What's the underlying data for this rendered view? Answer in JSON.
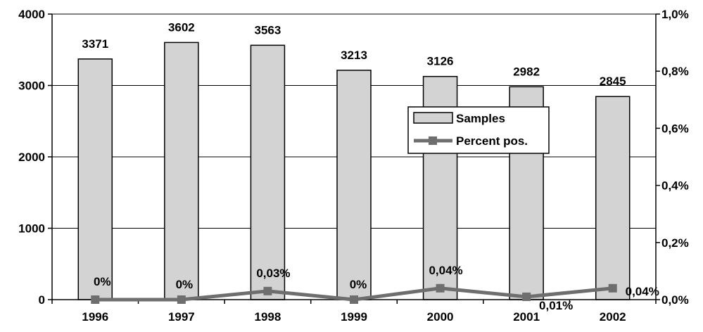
{
  "chart_data": {
    "type": "bar",
    "categories": [
      "1996",
      "1997",
      "1998",
      "1999",
      "2000",
      "2001",
      "2002"
    ],
    "series": [
      {
        "name": "Samples",
        "type": "bar",
        "axis": "left",
        "values": [
          3371,
          3602,
          3563,
          3213,
          3126,
          2982,
          2845
        ],
        "labels": [
          "3371",
          "3602",
          "3563",
          "3213",
          "3126",
          "2982",
          "2845"
        ]
      },
      {
        "name": "Percent pos.",
        "type": "line",
        "axis": "right",
        "values": [
          0,
          0,
          0.03,
          0,
          0.04,
          0.01,
          0.04
        ],
        "labels": [
          "0%",
          "0%",
          "0,03%",
          "0%",
          "0,04%",
          "0,01%",
          "0,04%"
        ]
      }
    ],
    "y_left": {
      "ylim": [
        0,
        4000
      ],
      "ticks": [
        0,
        1000,
        2000,
        3000,
        4000
      ],
      "tick_labels": [
        "0",
        "1000",
        "2000",
        "3000",
        "4000"
      ]
    },
    "y_right": {
      "ylim": [
        0,
        1.0
      ],
      "ticks": [
        0,
        0.2,
        0.4,
        0.6,
        0.8,
        1.0
      ],
      "tick_labels": [
        "0,0%",
        "0,2%",
        "0,4%",
        "0,6%",
        "0,8%",
        "1,0%"
      ]
    },
    "grid": true,
    "legend": "right",
    "colors": {
      "bar_fill": "#d3d3d3",
      "bar_stroke": "#000000",
      "line": "#6e6e6e",
      "grid": "#000000"
    }
  }
}
